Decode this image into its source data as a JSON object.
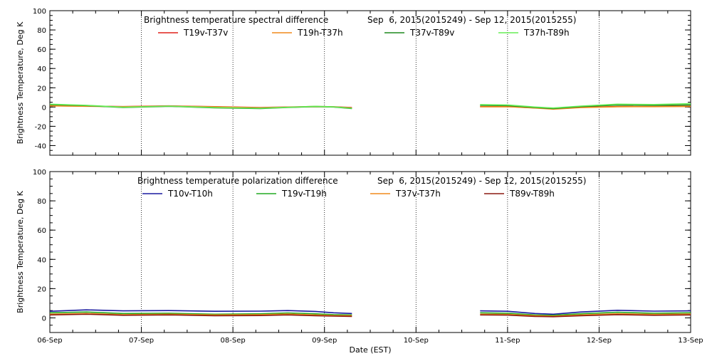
{
  "chart_data": [
    {
      "type": "line",
      "title": "Brightness temperature spectral difference",
      "date_range": "Sep  6, 2015(2015249) - Sep 12, 2015(2015255)",
      "xlabel": "",
      "ylabel": "Brightness Temperature, Deg K",
      "ylim": [
        -50,
        100
      ],
      "yticks": [
        -40,
        -20,
        0,
        20,
        40,
        60,
        80,
        100
      ],
      "xlim": [
        0,
        7
      ],
      "xticks": [
        0,
        1,
        2,
        3,
        4,
        5,
        6,
        7
      ],
      "xtick_labels": [
        "06-Sep",
        "07-Sep",
        "08-Sep",
        "09-Sep",
        "10-Sep",
        "11-Sep",
        "12-Sep",
        "13-Sep"
      ],
      "show_xtick_labels": false,
      "grid": "vertical dotted at day boundaries",
      "series": [
        {
          "name": "T19v-T37v",
          "color": "#e0201a",
          "points": [
            [
              0,
              1.5
            ],
            [
              0.4,
              1.0
            ],
            [
              0.8,
              0.5
            ],
            [
              1.3,
              1.2
            ],
            [
              1.8,
              0.4
            ],
            [
              2.3,
              -0.5
            ],
            [
              2.6,
              0.0
            ],
            [
              2.9,
              0.6
            ],
            [
              3.1,
              0.3
            ],
            [
              3.3,
              -0.5
            ],
            [
              4.7,
              0.4
            ],
            [
              5.0,
              0.5
            ],
            [
              5.3,
              -0.8
            ],
            [
              5.5,
              -1.8
            ],
            [
              5.8,
              -0.3
            ],
            [
              6.2,
              0.5
            ],
            [
              6.6,
              0.6
            ],
            [
              7.0,
              0.8
            ]
          ]
        },
        {
          "name": "T19h-T37h",
          "color": "#f08a1c",
          "points": [
            [
              0,
              1.2
            ],
            [
              0.4,
              0.8
            ],
            [
              0.8,
              0.3
            ],
            [
              1.3,
              1.0
            ],
            [
              1.8,
              0.2
            ],
            [
              2.3,
              -0.8
            ],
            [
              2.6,
              -0.2
            ],
            [
              2.9,
              0.4
            ],
            [
              3.1,
              0.1
            ],
            [
              3.3,
              -1.0
            ],
            [
              4.7,
              0.3
            ],
            [
              5.0,
              0.4
            ],
            [
              5.3,
              -1.0
            ],
            [
              5.5,
              -2.2
            ],
            [
              5.8,
              -0.6
            ],
            [
              6.2,
              0.3
            ],
            [
              6.6,
              0.4
            ],
            [
              7.0,
              0.6
            ]
          ]
        },
        {
          "name": "T37v-T89v",
          "color": "#1e8a1e",
          "points": [
            [
              0,
              2.5
            ],
            [
              0.4,
              1.5
            ],
            [
              0.8,
              -0.5
            ],
            [
              1.3,
              0.8
            ],
            [
              1.8,
              -0.8
            ],
            [
              2.3,
              -1.5
            ],
            [
              2.6,
              -0.5
            ],
            [
              2.9,
              0.5
            ],
            [
              3.1,
              0.0
            ],
            [
              3.3,
              -1.5
            ],
            [
              4.7,
              1.8
            ],
            [
              5.0,
              1.5
            ],
            [
              5.3,
              -0.5
            ],
            [
              5.5,
              -1.5
            ],
            [
              5.8,
              0.5
            ],
            [
              6.2,
              2.0
            ],
            [
              6.6,
              1.8
            ],
            [
              7.0,
              2.2
            ]
          ]
        },
        {
          "name": "T37h-T89h",
          "color": "#66ee55",
          "points": [
            [
              0,
              3.0
            ],
            [
              0.4,
              1.8
            ],
            [
              0.8,
              -0.2
            ],
            [
              1.3,
              1.0
            ],
            [
              1.8,
              -0.5
            ],
            [
              2.3,
              -1.2
            ],
            [
              2.6,
              -0.3
            ],
            [
              2.9,
              0.8
            ],
            [
              3.1,
              0.2
            ],
            [
              3.3,
              -1.2
            ],
            [
              4.7,
              2.5
            ],
            [
              5.0,
              2.2
            ],
            [
              5.3,
              0.0
            ],
            [
              5.5,
              -1.0
            ],
            [
              5.8,
              1.0
            ],
            [
              6.2,
              3.0
            ],
            [
              6.6,
              2.6
            ],
            [
              7.0,
              3.5
            ]
          ]
        }
      ]
    },
    {
      "type": "line",
      "title": "Brightness temperature polarization difference",
      "date_range": "Sep  6, 2015(2015249) - Sep 12, 2015(2015255)",
      "xlabel": "Date (EST)",
      "ylabel": "Brightness Temperature, Deg K",
      "ylim": [
        -10,
        100
      ],
      "yticks": [
        0,
        20,
        40,
        60,
        80,
        100
      ],
      "xlim": [
        0,
        7
      ],
      "xticks": [
        0,
        1,
        2,
        3,
        4,
        5,
        6,
        7
      ],
      "xtick_labels": [
        "06-Sep",
        "07-Sep",
        "08-Sep",
        "09-Sep",
        "10-Sep",
        "11-Sep",
        "12-Sep",
        "13-Sep"
      ],
      "show_xtick_labels": true,
      "grid": "vertical dotted at day boundaries",
      "series": [
        {
          "name": "T10v-T10h",
          "color": "#1a1aa0",
          "points": [
            [
              0,
              4.5
            ],
            [
              0.4,
              5.5
            ],
            [
              0.8,
              4.8
            ],
            [
              1.3,
              5.0
            ],
            [
              1.8,
              4.5
            ],
            [
              2.3,
              4.6
            ],
            [
              2.6,
              5.0
            ],
            [
              2.9,
              4.4
            ],
            [
              3.1,
              3.5
            ],
            [
              3.3,
              3.0
            ],
            [
              4.7,
              4.8
            ],
            [
              5.0,
              4.5
            ],
            [
              5.3,
              3.0
            ],
            [
              5.5,
              2.5
            ],
            [
              5.8,
              4.0
            ],
            [
              6.2,
              5.2
            ],
            [
              6.6,
              4.6
            ],
            [
              7.0,
              4.8
            ]
          ]
        },
        {
          "name": "T19v-T19h",
          "color": "#22aa22",
          "points": [
            [
              0,
              3.5
            ],
            [
              0.4,
              4.0
            ],
            [
              0.8,
              3.0
            ],
            [
              1.3,
              3.2
            ],
            [
              1.8,
              2.5
            ],
            [
              2.3,
              2.8
            ],
            [
              2.6,
              3.4
            ],
            [
              2.9,
              2.8
            ],
            [
              3.1,
              2.2
            ],
            [
              3.3,
              2.0
            ],
            [
              4.7,
              3.5
            ],
            [
              5.0,
              3.2
            ],
            [
              5.3,
              2.0
            ],
            [
              5.5,
              1.8
            ],
            [
              5.8,
              2.8
            ],
            [
              6.2,
              3.8
            ],
            [
              6.6,
              3.2
            ],
            [
              7.0,
              3.5
            ]
          ]
        },
        {
          "name": "T37v-T37h",
          "color": "#f08a1c",
          "points": [
            [
              0,
              2.5
            ],
            [
              0.4,
              3.0
            ],
            [
              0.8,
              2.2
            ],
            [
              1.3,
              2.5
            ],
            [
              1.8,
              2.0
            ],
            [
              2.3,
              2.2
            ],
            [
              2.6,
              2.6
            ],
            [
              2.9,
              2.0
            ],
            [
              3.1,
              1.6
            ],
            [
              3.3,
              1.5
            ],
            [
              4.7,
              2.5
            ],
            [
              5.0,
              2.4
            ],
            [
              5.3,
              1.5
            ],
            [
              5.5,
              1.2
            ],
            [
              5.8,
              2.0
            ],
            [
              6.2,
              2.8
            ],
            [
              6.6,
              2.4
            ],
            [
              7.0,
              2.6
            ]
          ]
        },
        {
          "name": "T89v-T89h",
          "color": "#8b1a10",
          "points": [
            [
              0,
              2.0
            ],
            [
              0.4,
              2.5
            ],
            [
              0.8,
              1.8
            ],
            [
              1.3,
              2.0
            ],
            [
              1.8,
              1.5
            ],
            [
              2.3,
              1.6
            ],
            [
              2.6,
              2.0
            ],
            [
              2.9,
              1.5
            ],
            [
              3.1,
              1.2
            ],
            [
              3.3,
              1.0
            ],
            [
              4.7,
              2.0
            ],
            [
              5.0,
              1.9
            ],
            [
              5.3,
              1.0
            ],
            [
              5.5,
              0.8
            ],
            [
              5.8,
              1.5
            ],
            [
              6.2,
              2.2
            ],
            [
              6.6,
              1.8
            ],
            [
              7.0,
              2.0
            ]
          ]
        }
      ]
    }
  ]
}
